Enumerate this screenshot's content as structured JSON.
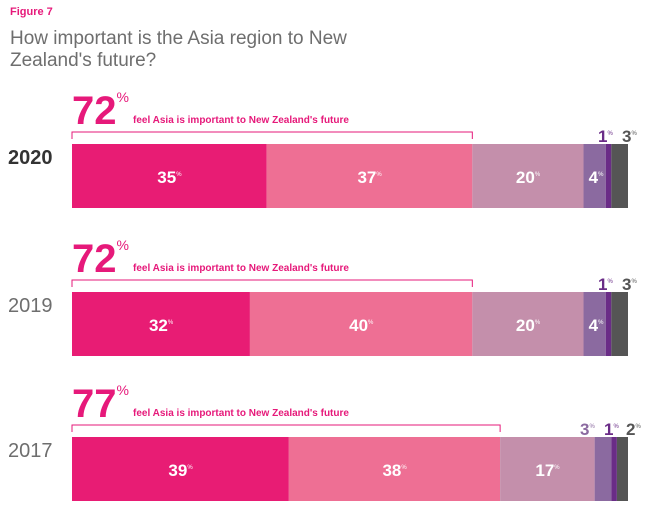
{
  "figure_label": "Figure 7",
  "title": "How important is the Asia region to New Zealand's future?",
  "colors": {
    "very_important": "#e81c74",
    "important": "#ee6f94",
    "neutral": "#c48fab",
    "not_important": "#8b6aa0",
    "not_at_all": "#6a2c87",
    "dont_know": "#555555",
    "headline": "#e6197a",
    "year_text": "#6e6e6e"
  },
  "chart_data": {
    "type": "bar",
    "orientation": "horizontal-stacked",
    "unit": "%",
    "categories": [
      "2020",
      "2019",
      "2017"
    ],
    "series": [
      {
        "values": [
          35,
          32,
          39
        ]
      },
      {
        "values": [
          37,
          40,
          38
        ]
      },
      {
        "values": [
          20,
          20,
          17
        ]
      },
      {
        "values": [
          4,
          4,
          3
        ]
      },
      {
        "values": [
          1,
          1,
          1
        ]
      },
      {
        "values": [
          3,
          3,
          2
        ]
      }
    ],
    "headline_values": [
      72,
      72,
      77
    ],
    "headline_text": "feel Asia is important to New Zealand's future",
    "legend": "none"
  }
}
